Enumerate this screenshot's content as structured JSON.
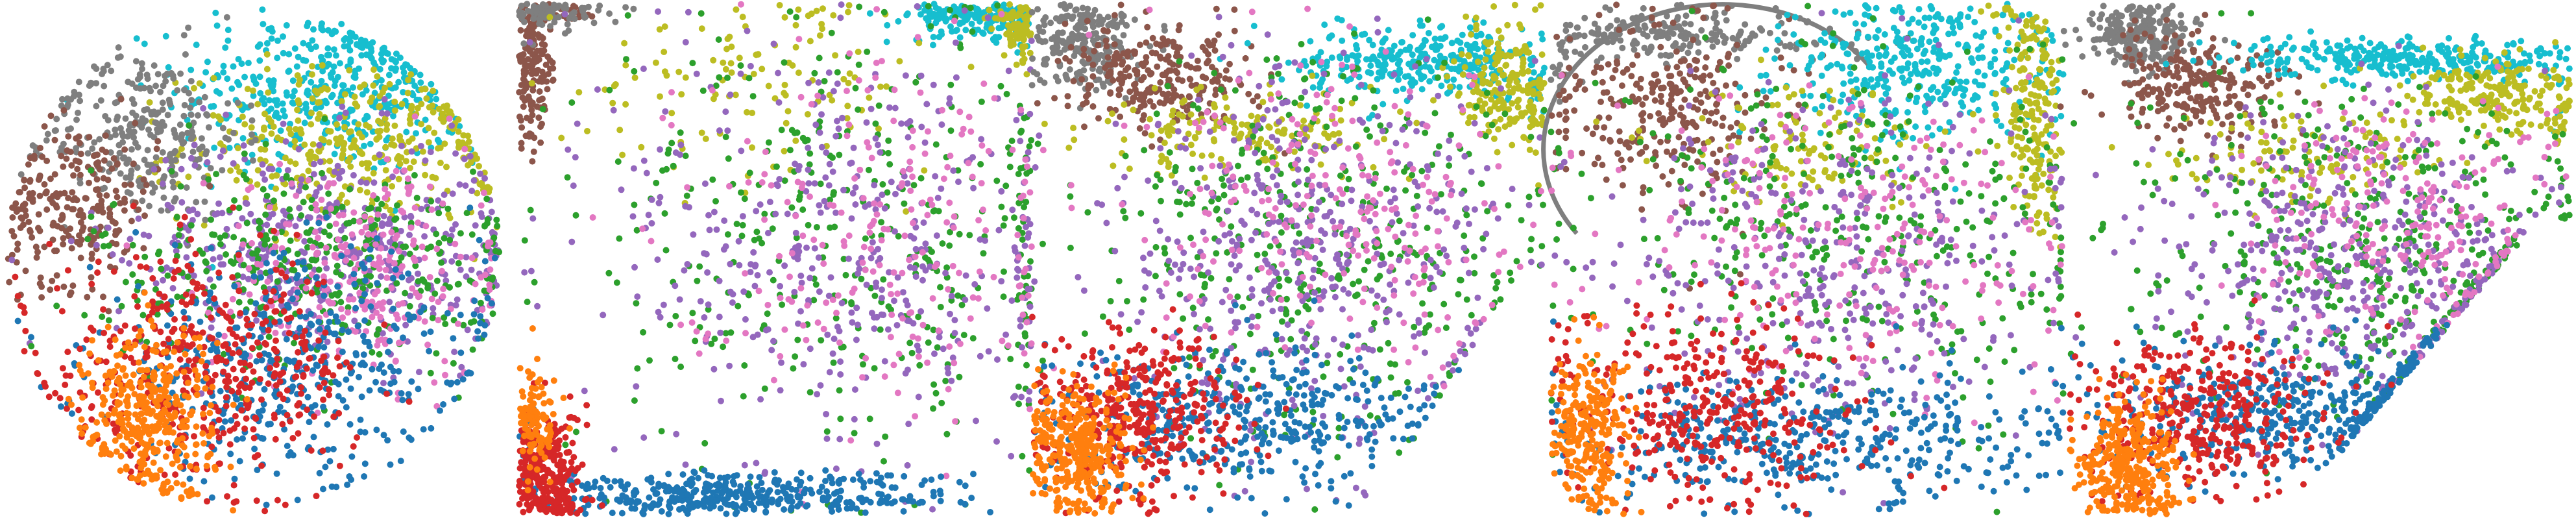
{
  "chart_data": {
    "type": "scatter",
    "title": "",
    "xlabel": "",
    "ylabel": "",
    "axes_visible": false,
    "legend": "none",
    "grid": false,
    "class_colors": {
      "blue": "#1f77b4",
      "orange": "#ff7f0e",
      "green": "#2ca02c",
      "red": "#d62728",
      "purple": "#9467bd",
      "brown": "#8c564b",
      "pink": "#e377c2",
      "gray": "#7f7f7f",
      "olive": "#bcbd22",
      "cyan": "#17becf"
    },
    "panels": [
      {
        "shape": "disk",
        "xlim": [
          -1,
          1
        ],
        "ylim": [
          -1,
          1
        ],
        "clusters": [
          {
            "class": "cyan",
            "cx": 0.3,
            "cy": 0.68,
            "sx": 0.3,
            "sy": 0.17,
            "n": 420
          },
          {
            "class": "olive",
            "cx": 0.42,
            "cy": 0.45,
            "sx": 0.35,
            "sy": 0.15,
            "n": 360
          },
          {
            "class": "gray",
            "cx": -0.45,
            "cy": 0.5,
            "sx": 0.2,
            "sy": 0.17,
            "n": 300
          },
          {
            "class": "brown",
            "cx": -0.72,
            "cy": 0.22,
            "sx": 0.17,
            "sy": 0.16,
            "n": 240
          },
          {
            "class": "purple",
            "cx": 0.28,
            "cy": 0.05,
            "sx": 0.42,
            "sy": 0.22,
            "n": 460
          },
          {
            "class": "green",
            "cx": 0.25,
            "cy": -0.02,
            "sx": 0.45,
            "sy": 0.2,
            "n": 380
          },
          {
            "class": "pink",
            "cx": 0.45,
            "cy": -0.05,
            "sx": 0.3,
            "sy": 0.22,
            "n": 260
          },
          {
            "class": "blue",
            "cx": 0.15,
            "cy": -0.42,
            "sx": 0.4,
            "sy": 0.22,
            "n": 460
          },
          {
            "class": "red",
            "cx": -0.2,
            "cy": -0.45,
            "sx": 0.32,
            "sy": 0.22,
            "n": 460
          },
          {
            "class": "orange",
            "cx": -0.42,
            "cy": -0.62,
            "sx": 0.13,
            "sy": 0.18,
            "n": 360
          }
        ]
      },
      {
        "shape": "square",
        "xlim": [
          -1,
          1
        ],
        "ylim": [
          -1,
          1
        ],
        "clusters": [
          {
            "class": "brown",
            "cx": -0.95,
            "cy": 0.8,
            "sx": 0.04,
            "sy": 0.18,
            "n": 200
          },
          {
            "class": "gray",
            "cx": -0.88,
            "cy": 0.97,
            "sx": 0.1,
            "sy": 0.03,
            "n": 80
          },
          {
            "class": "cyan",
            "cx": 0.8,
            "cy": 0.95,
            "sx": 0.14,
            "sy": 0.05,
            "n": 180
          },
          {
            "class": "olive",
            "cx": 0.95,
            "cy": 0.92,
            "sx": 0.04,
            "sy": 0.06,
            "n": 90
          },
          {
            "class": "olive",
            "cx": -0.05,
            "cy": 0.72,
            "sx": 0.35,
            "sy": 0.18,
            "n": 120
          },
          {
            "class": "green",
            "cx": 0.3,
            "cy": 0.1,
            "sx": 0.55,
            "sy": 0.45,
            "n": 380
          },
          {
            "class": "purple",
            "cx": 0.3,
            "cy": 0.05,
            "sx": 0.45,
            "sy": 0.45,
            "n": 420
          },
          {
            "class": "pink",
            "cx": 0.4,
            "cy": 0.15,
            "sx": 0.4,
            "sy": 0.35,
            "n": 220
          },
          {
            "class": "blue",
            "cx": -0.2,
            "cy": -0.93,
            "sx": 0.45,
            "sy": 0.05,
            "n": 420
          },
          {
            "class": "red",
            "cx": -0.9,
            "cy": -0.85,
            "sx": 0.07,
            "sy": 0.13,
            "n": 300
          },
          {
            "class": "orange",
            "cx": -0.93,
            "cy": -0.65,
            "sx": 0.04,
            "sy": 0.1,
            "n": 100
          }
        ]
      },
      {
        "shape": "fan",
        "xlim": [
          -1,
          1
        ],
        "ylim": [
          -1,
          1
        ],
        "clusters": [
          {
            "class": "gray",
            "cx": -0.8,
            "cy": 0.85,
            "sx": 0.1,
            "sy": 0.09,
            "n": 240
          },
          {
            "class": "brown",
            "cx": -0.5,
            "cy": 0.7,
            "sx": 0.18,
            "sy": 0.1,
            "n": 260
          },
          {
            "class": "cyan",
            "cx": 0.55,
            "cy": 0.78,
            "sx": 0.25,
            "sy": 0.07,
            "n": 320
          },
          {
            "class": "olive",
            "cx": 0.85,
            "cy": 0.68,
            "sx": 0.1,
            "sy": 0.12,
            "n": 200
          },
          {
            "class": "olive",
            "cx": -0.15,
            "cy": 0.5,
            "sx": 0.3,
            "sy": 0.08,
            "n": 160
          },
          {
            "class": "green",
            "cx": 0.15,
            "cy": 0.05,
            "sx": 0.45,
            "sy": 0.38,
            "n": 420
          },
          {
            "class": "purple",
            "cx": 0.05,
            "cy": 0.0,
            "sx": 0.4,
            "sy": 0.38,
            "n": 460
          },
          {
            "class": "pink",
            "cx": 0.25,
            "cy": 0.15,
            "sx": 0.4,
            "sy": 0.3,
            "n": 240
          },
          {
            "class": "blue",
            "cx": -0.2,
            "cy": -0.62,
            "sx": 0.38,
            "sy": 0.14,
            "n": 420
          },
          {
            "class": "red",
            "cx": -0.58,
            "cy": -0.62,
            "sx": 0.2,
            "sy": 0.16,
            "n": 380
          },
          {
            "class": "orange",
            "cx": -0.82,
            "cy": -0.75,
            "sx": 0.1,
            "sy": 0.13,
            "n": 340
          }
        ]
      },
      {
        "shape": "rounded-square",
        "xlim": [
          -1,
          1
        ],
        "ylim": [
          -1,
          1
        ],
        "clusters": [
          {
            "class": "gray",
            "cx": -0.55,
            "cy": 0.88,
            "sx": 0.3,
            "sy": 0.05,
            "n": 220
          },
          {
            "class": "brown",
            "cx": -0.55,
            "cy": 0.6,
            "sx": 0.22,
            "sy": 0.18,
            "n": 280
          },
          {
            "class": "cyan",
            "cx": 0.45,
            "cy": 0.75,
            "sx": 0.28,
            "sy": 0.14,
            "n": 360
          },
          {
            "class": "olive",
            "cx": 0.88,
            "cy": 0.6,
            "sx": 0.06,
            "sy": 0.25,
            "n": 200
          },
          {
            "class": "olive",
            "cx": 0.05,
            "cy": 0.45,
            "sx": 0.3,
            "sy": 0.12,
            "n": 120
          },
          {
            "class": "green",
            "cx": 0.15,
            "cy": 0.1,
            "sx": 0.5,
            "sy": 0.35,
            "n": 360
          },
          {
            "class": "purple",
            "cx": 0.1,
            "cy": 0.0,
            "sx": 0.45,
            "sy": 0.35,
            "n": 380
          },
          {
            "class": "pink",
            "cx": 0.2,
            "cy": 0.1,
            "sx": 0.45,
            "sy": 0.3,
            "n": 240
          },
          {
            "class": "blue",
            "cx": 0.0,
            "cy": -0.72,
            "sx": 0.5,
            "sy": 0.14,
            "n": 420
          },
          {
            "class": "red",
            "cx": -0.4,
            "cy": -0.6,
            "sx": 0.3,
            "sy": 0.2,
            "n": 360
          },
          {
            "class": "orange",
            "cx": -0.85,
            "cy": -0.7,
            "sx": 0.08,
            "sy": 0.16,
            "n": 260
          }
        ]
      },
      {
        "shape": "fan-narrow",
        "xlim": [
          -1,
          1
        ],
        "ylim": [
          -1,
          1
        ],
        "clusters": [
          {
            "class": "gray",
            "cx": -0.68,
            "cy": 0.88,
            "sx": 0.1,
            "sy": 0.07,
            "n": 240
          },
          {
            "class": "brown",
            "cx": -0.45,
            "cy": 0.68,
            "sx": 0.18,
            "sy": 0.1,
            "n": 260
          },
          {
            "class": "cyan",
            "cx": 0.4,
            "cy": 0.78,
            "sx": 0.35,
            "sy": 0.04,
            "n": 320
          },
          {
            "class": "olive",
            "cx": 0.75,
            "cy": 0.65,
            "sx": 0.2,
            "sy": 0.07,
            "n": 220
          },
          {
            "class": "olive",
            "cx": -0.05,
            "cy": 0.4,
            "sx": 0.25,
            "sy": 0.08,
            "n": 120
          },
          {
            "class": "green",
            "cx": 0.2,
            "cy": 0.05,
            "sx": 0.45,
            "sy": 0.3,
            "n": 420
          },
          {
            "class": "purple",
            "cx": 0.15,
            "cy": 0.0,
            "sx": 0.4,
            "sy": 0.3,
            "n": 440
          },
          {
            "class": "pink",
            "cx": 0.35,
            "cy": 0.15,
            "sx": 0.35,
            "sy": 0.25,
            "n": 240
          },
          {
            "class": "blue",
            "cx": -0.05,
            "cy": -0.6,
            "sx": 0.38,
            "sy": 0.12,
            "n": 420
          },
          {
            "class": "red",
            "cx": -0.45,
            "cy": -0.62,
            "sx": 0.22,
            "sy": 0.15,
            "n": 380
          },
          {
            "class": "orange",
            "cx": -0.72,
            "cy": -0.8,
            "sx": 0.1,
            "sy": 0.13,
            "n": 340
          }
        ]
      }
    ]
  }
}
